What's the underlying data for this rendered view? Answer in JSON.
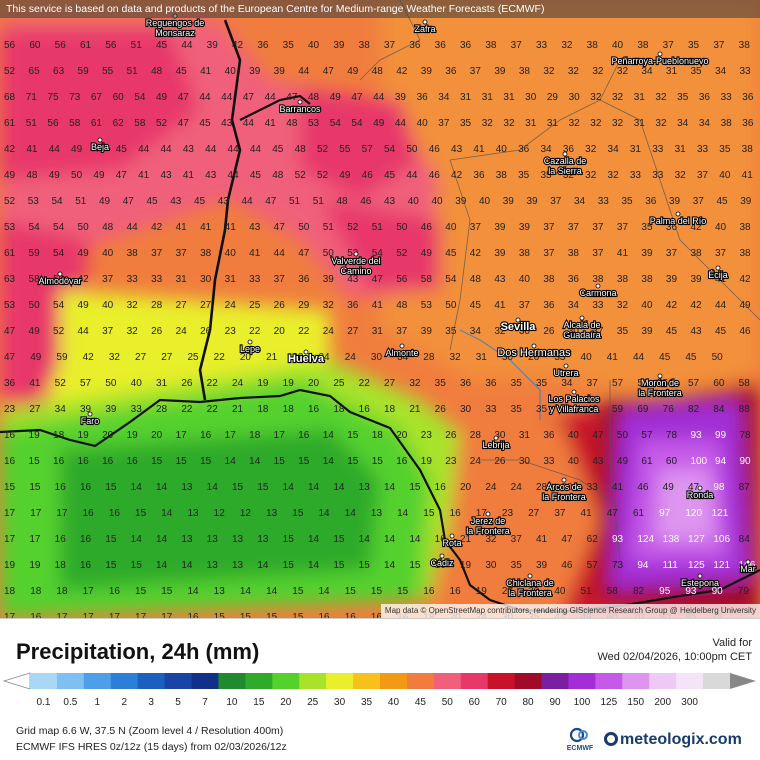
{
  "notice": "This service is based on data and products of the European Centre for Medium-range Weather Forecasts (ECMWF)",
  "attribution": "Map data © OpenStreetMap contributors, rendering GIScience Research Group @ Heidelberg University",
  "title": "Precipitation, 24h (mm)",
  "valid_label": "Valid for",
  "valid_date": "Wed 02/04/2026, 10:00pm CET",
  "grid_info": "Grid map 6.6 W, 37.5 N (Zoom level 4 / Resolution 400m)",
  "model_info": "ECMWF IFS HRES 0z/12z (15 days) from 02/03/2026/12z",
  "ecmwf_logo": "ECMWF",
  "brand": "meteologix.com",
  "legend": {
    "labels": [
      "0.1",
      "0.5",
      "1",
      "2",
      "3",
      "5",
      "7",
      "10",
      "15",
      "20",
      "25",
      "30",
      "35",
      "40",
      "45",
      "50",
      "60",
      "70",
      "80",
      "90",
      "100",
      "125",
      "150",
      "200",
      "300"
    ],
    "colors": [
      "#a9d8f5",
      "#7fbff2",
      "#4f9fe8",
      "#2c7fd6",
      "#1c5fbf",
      "#1a43a6",
      "#10308a",
      "#1f8a2e",
      "#2faa2a",
      "#55d12e",
      "#a8e32a",
      "#e9ef2a",
      "#f6c219",
      "#f29a16",
      "#f07d3e",
      "#f0607a",
      "#e8386a",
      "#c8122a",
      "#a00c28",
      "#7a1fa0",
      "#a22ed6",
      "#c65ae8",
      "#de95f0",
      "#eec9f5",
      "#f5e4f8",
      "#d9d9d9"
    ]
  },
  "places": [
    {
      "name": "Reguengos de Monsaraz"
    },
    {
      "name": "Zafra"
    },
    {
      "name": "Peñarroya-Pueblonuevo"
    },
    {
      "name": "Barrancos"
    },
    {
      "name": "Beja"
    },
    {
      "name": "Cazalla de la Sierra"
    },
    {
      "name": "Palma del Río"
    },
    {
      "name": "Valverde del Camino"
    },
    {
      "name": "Écija"
    },
    {
      "name": "Almodôvar"
    },
    {
      "name": "Carmona"
    },
    {
      "name": "Sevilla"
    },
    {
      "name": "Alcalá de Guadaíra"
    },
    {
      "name": "Lepe"
    },
    {
      "name": "Huelva"
    },
    {
      "name": "Almonte"
    },
    {
      "name": "Dos Hermanas"
    },
    {
      "name": "Utrera"
    },
    {
      "name": "Morón de la Frontera"
    },
    {
      "name": "Los Palacios y Villafranca"
    },
    {
      "name": "Faro"
    },
    {
      "name": "Lebrija"
    },
    {
      "name": "Arcos de la Frontera"
    },
    {
      "name": "Ronda"
    },
    {
      "name": "Jerez de la Frontera"
    },
    {
      "name": "Rota"
    },
    {
      "name": "Cádiz"
    },
    {
      "name": "Chiclana de la Frontera"
    },
    {
      "name": "Estepona"
    },
    {
      "name": "Mar"
    }
  ],
  "grid_values": [
    "56 60 56 61 56 51 45 44 39 42 36 35 40 39 38 37 36 36 36 38 37 33 32 38 40 38 37 35 37 38",
    "52 65 63 59 55 51 48 45 41 40 39 39 44 47 49 48 42 39 36 37 39 38 32 32 32 32 34 31 35 34 33",
    "68 71 75 73 67 60 54 49 47 44 44 47 44 47 48 49 47 44 39 36 34 31 31 31 30 29 30 32 32 31 32 35 36 33 36",
    "61 51 56 58 61 62 58 52 47 45 43 44 41 48 53 54 54 49 44 40 37 35 32 32 31 31 32 32 32 31 32 34 34 38 36",
    "42 41 44 49 47 45 44 44 43 44 44 44 45 48 52 55 57 54 50 46 43 41 40 36 34 36 32 34 31 33 31 33 35 38",
    "49 48 49 50 49 47 41 43 41 43 44 45 48 52 52 49 46 45 44 46 42 36 38 35 35 32 32 32 33 33 32 37 40 41",
    "52 53 54 51 49 47 45 43 45 43 44 47 51 51 48 46 43 40 40 39 40 39 39 37 34 33 35 36 39 37 45 39",
    "53 54 54 50 48 44 42 41 41 41 43 47 50 51 52 51 50 46 40 37 39 39 37 37 37 37 35 36 42 40 38",
    "61 59 54 49 40 38 37 37 38 40 41 44 47 50 53 54 52 49 45 42 39 38 37 38 37 41 39 37 38 37 38",
    "63 58 50 42 37 33 33 31 30 31 33 37 36 39 43 47 56 58 54 48 43 40 38 36 38 38 38 39 39 41 42",
    "53 50 54 49 40 32 28 27 27 24 25 26 29 32 36 41 48 53 50 45 41 37 36 34 33 32 40 42 42 44 49",
    "47 49 52 44 37 32 26 24 26 23 22 20 22 24 27 31 37 39 35 34 32 30 26 30 37 35 39 45 43 45 46",
    "47 49 59 42 32 27 27 25 22 20 21 23 24 24 30 34 28 32 31 30 26 33 40 41 44 45 45 50",
    "36 41 52 57 50 40 31 26 22 24 19 19 20 25 22 27 32 35 36 36 35 35 34 37 57 52 56 57 60 58",
    "23 27 34 39 39 33 28 22 22 21 18 18 16 18 16 18 21 26 30 33 35 35 33 40 59 69 76 82 84 88",
    "16 19 18 19 20 19 20 17 16 17 18 17 16 14 15 18 20 23 26 28 30 31 36 40 47 50 57 78 93 99 78",
    "16 15 16 16 16 16 15 15 15 14 14 15 15 14 15 15 16 19 23 24 26 30 33 40 43 49 61 60 100 94 90",
    "15 15 16 16 15 14 14 13 14 15 15 14 14 14 13 14 15 16 20 24 24 28 30 33 41 46 49 47 98 87",
    "17 17 17 16 16 15 14 13 12 12 13 15 14 14 13 14 15 16 17 23 27 37 41 47 61 97 120 121",
    "17 17 16 16 15 14 14 13 13 13 13 15 14 15 14 14 14 16 21 32 37 41 47 62 93 124 138 127 106 84",
    "19 19 18 16 15 15 14 14 13 13 14 15 14 15 15 14 15 16 19 30 35 39 46 57 73 94 111 125 121 106",
    "18 18 18 17 16 15 15 14 13 14 14 15 14 15 15 15 16 16 19 27 30 40 51 58 82 95 93 90 79",
    "17 16 17 17 17 17 17 16 15 15 15 15 16 16 16 16 18 20 24 30 35 44 49 60 70 80 85 75"
  ]
}
